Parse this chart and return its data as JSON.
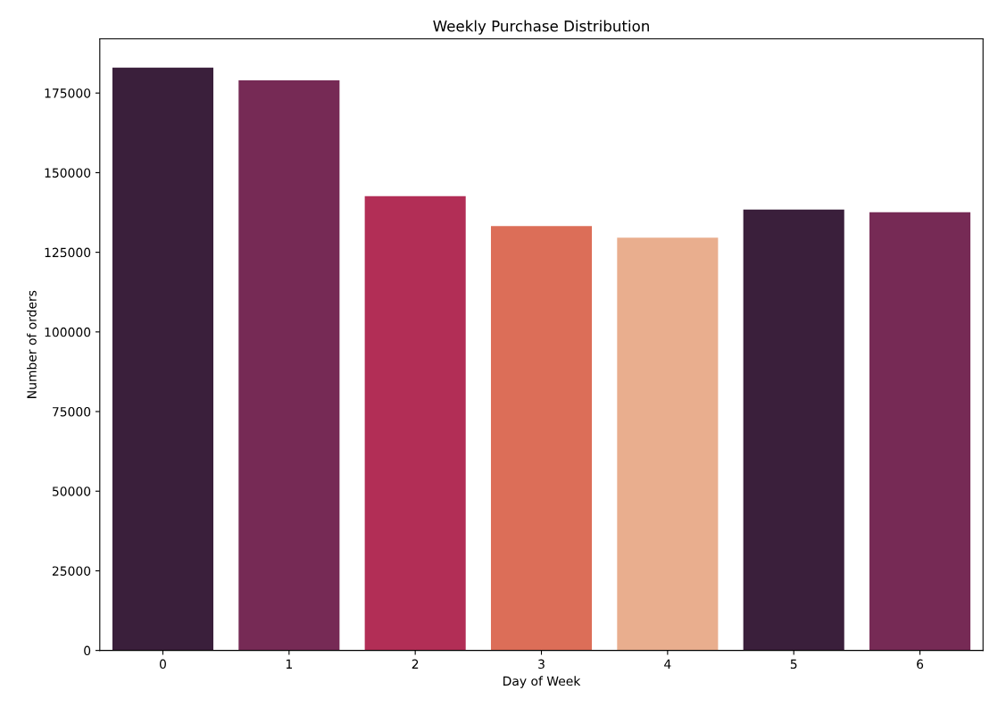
{
  "chart_data": {
    "type": "bar",
    "title": "Weekly Purchase Distribution",
    "xlabel": "Day of Week",
    "ylabel": "Number of orders",
    "categories": [
      "0",
      "1",
      "2",
      "3",
      "4",
      "5",
      "6"
    ],
    "values": [
      183000,
      179000,
      142600,
      133200,
      129600,
      138400,
      137600
    ],
    "colors": [
      "#3a1f3b",
      "#762a55",
      "#b22e56",
      "#dc6e58",
      "#e9ae8e",
      "#3a1f3b",
      "#762a55"
    ],
    "ylim": [
      0,
      192000
    ],
    "yticks": [
      0,
      25000,
      50000,
      75000,
      100000,
      125000,
      150000,
      175000
    ],
    "grid": false,
    "legend": false
  }
}
